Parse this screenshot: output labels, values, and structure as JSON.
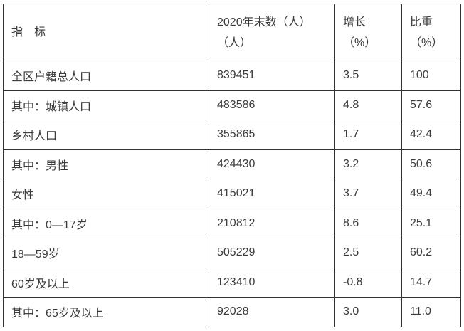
{
  "table": {
    "header": {
      "indicator": "指　标",
      "yearend_line1": "2020年末数（人）",
      "yearend_line2": "（人）",
      "growth_line1": "增长",
      "growth_line2": "（%）",
      "share_line1": "比重",
      "share_line2": "（%）"
    },
    "rows": [
      {
        "label": "全区户籍总人口",
        "value": "839451",
        "growth": "3.5",
        "share": "100"
      },
      {
        "label": "其中：城镇人口",
        "value": "483586",
        "growth": "4.8",
        "share": "57.6"
      },
      {
        "label": "乡村人口",
        "value": "355865",
        "growth": "1.7",
        "share": "42.4"
      },
      {
        "label": "其中：男性",
        "value": "424430",
        "growth": "3.2",
        "share": "50.6"
      },
      {
        "label": "女性",
        "value": "415021",
        "growth": "3.7",
        "share": "49.4"
      },
      {
        "label": "其中：0—17岁",
        "value": "210812",
        "growth": "8.6",
        "share": "25.1"
      },
      {
        "label": "18—59岁",
        "value": "505229",
        "growth": "2.5",
        "share": "60.2"
      },
      {
        "label": "60岁及以上",
        "value": "123410",
        "growth": "-0.8",
        "share": "14.7"
      },
      {
        "label": "其中：65岁及以上",
        "value": "92028",
        "growth": "3.0",
        "share": "11.0"
      }
    ]
  },
  "chart_data": {
    "type": "table",
    "title": "",
    "columns": [
      "指标",
      "2020年末数（人）（人）",
      "增长（%）",
      "比重（%）"
    ],
    "rows": [
      [
        "全区户籍总人口",
        "839451",
        "3.5",
        "100"
      ],
      [
        "其中：城镇人口",
        "483586",
        "4.8",
        "57.6"
      ],
      [
        "乡村人口",
        "355865",
        "1.7",
        "42.4"
      ],
      [
        "其中：男性",
        "424430",
        "3.2",
        "50.6"
      ],
      [
        "女性",
        "415021",
        "3.7",
        "49.4"
      ],
      [
        "其中：0—17岁",
        "210812",
        "8.6",
        "25.1"
      ],
      [
        "18—59岁",
        "505229",
        "2.5",
        "60.2"
      ],
      [
        "60岁及以上",
        "123410",
        "-0.8",
        "14.7"
      ],
      [
        "其中：65岁及以上",
        "92028",
        "3.0",
        "11.0"
      ]
    ]
  },
  "colors": {
    "border": "#333333",
    "text": "#3b3b3b",
    "background": "#ffffff"
  }
}
